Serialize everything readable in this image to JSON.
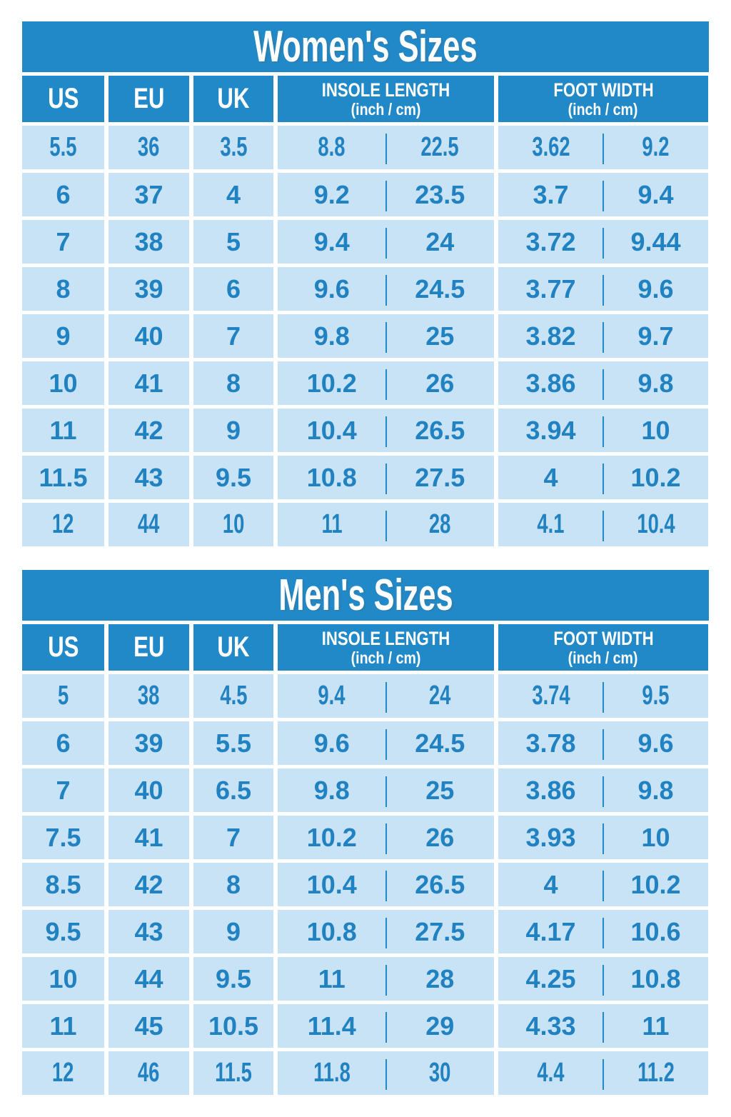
{
  "page": {
    "background": "#FFFFFF"
  },
  "colors": {
    "primary_blue": "#2289C8",
    "light_cell_blue": "#C8E3F5",
    "value_text_blue": "#2182C2",
    "header_text_white": "#FFFFFF"
  },
  "chart_data": [
    {
      "type": "table",
      "title": "Women's Sizes",
      "columns": [
        "US",
        "EU",
        "UK"
      ],
      "dual_columns": [
        {
          "label": "INSOLE LENGTH",
          "sub": "(inch / cm)"
        },
        {
          "label": "FOOT WIDTH",
          "sub": "(inch / cm)"
        }
      ],
      "rows": [
        [
          "5.5",
          "36",
          "3.5",
          "8.8",
          "22.5",
          "3.62",
          "9.2"
        ],
        [
          "6",
          "37",
          "4",
          "9.2",
          "23.5",
          "3.7",
          "9.4"
        ],
        [
          "7",
          "38",
          "5",
          "9.4",
          "24",
          "3.72",
          "9.44"
        ],
        [
          "8",
          "39",
          "6",
          "9.6",
          "24.5",
          "3.77",
          "9.6"
        ],
        [
          "9",
          "40",
          "7",
          "9.8",
          "25",
          "3.82",
          "9.7"
        ],
        [
          "10",
          "41",
          "8",
          "10.2",
          "26",
          "3.86",
          "9.8"
        ],
        [
          "11",
          "42",
          "9",
          "10.4",
          "26.5",
          "3.94",
          "10"
        ],
        [
          "11.5",
          "43",
          "9.5",
          "10.8",
          "27.5",
          "4",
          "10.2"
        ],
        [
          "12",
          "44",
          "10",
          "11",
          "28",
          "4.1",
          "10.4"
        ]
      ]
    },
    {
      "type": "table",
      "title": "Men's Sizes",
      "columns": [
        "US",
        "EU",
        "UK"
      ],
      "dual_columns": [
        {
          "label": "INSOLE LENGTH",
          "sub": "(inch / cm)"
        },
        {
          "label": "FOOT WIDTH",
          "sub": "(inch / cm)"
        }
      ],
      "rows": [
        [
          "5",
          "38",
          "4.5",
          "9.4",
          "24",
          "3.74",
          "9.5"
        ],
        [
          "6",
          "39",
          "5.5",
          "9.6",
          "24.5",
          "3.78",
          "9.6"
        ],
        [
          "7",
          "40",
          "6.5",
          "9.8",
          "25",
          "3.86",
          "9.8"
        ],
        [
          "7.5",
          "41",
          "7",
          "10.2",
          "26",
          "3.93",
          "10"
        ],
        [
          "8.5",
          "42",
          "8",
          "10.4",
          "26.5",
          "4",
          "10.2"
        ],
        [
          "9.5",
          "43",
          "9",
          "10.8",
          "27.5",
          "4.17",
          "10.6"
        ],
        [
          "10",
          "44",
          "9.5",
          "11",
          "28",
          "4.25",
          "10.8"
        ],
        [
          "11",
          "45",
          "10.5",
          "11.4",
          "29",
          "4.33",
          "11"
        ],
        [
          "12",
          "46",
          "11.5",
          "11.8",
          "30",
          "4.4",
          "11.2"
        ]
      ]
    }
  ]
}
